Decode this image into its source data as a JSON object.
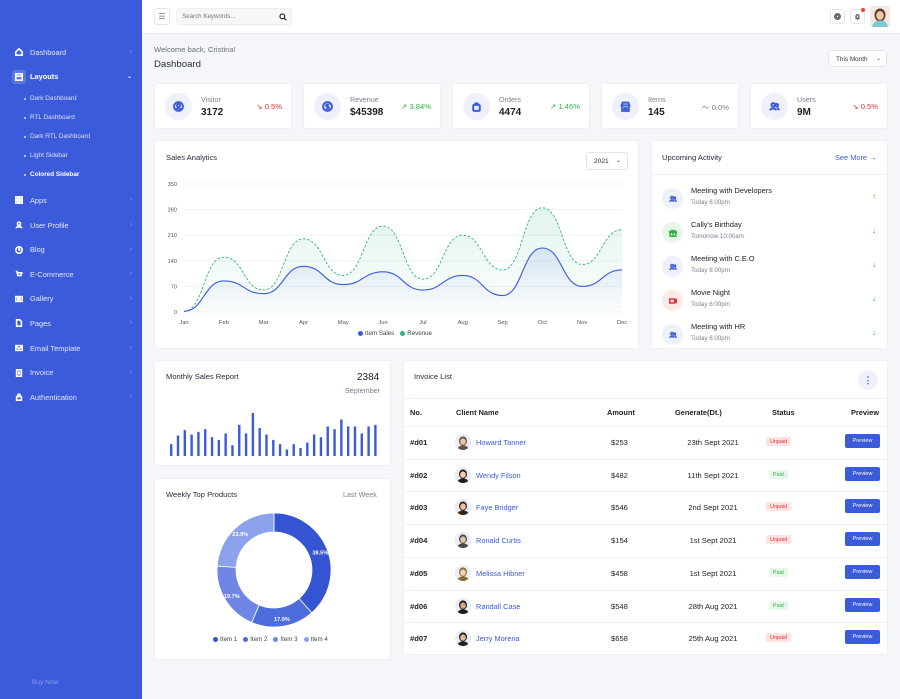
{
  "sidebar": {
    "items": [
      {
        "label": "Dashboard",
        "icon": "home-icon"
      },
      {
        "label": "Layouts",
        "icon": "layout-icon",
        "active": true,
        "sub": [
          {
            "label": "Dark Dashboard"
          },
          {
            "label": "RTL Dashboard"
          },
          {
            "label": "Dark RTL Dashboard"
          },
          {
            "label": "Light Sidebar"
          },
          {
            "label": "Colored Sidebar",
            "active": true
          }
        ]
      },
      {
        "label": "Apps",
        "icon": "apps-icon"
      },
      {
        "label": "User Profile",
        "icon": "user-icon"
      },
      {
        "label": "Blog",
        "icon": "blog-icon"
      },
      {
        "label": "E-Commerce",
        "icon": "cart-icon"
      },
      {
        "label": "Gallery",
        "icon": "gallery-icon"
      },
      {
        "label": "Pages",
        "icon": "pages-icon"
      },
      {
        "label": "Email Template",
        "icon": "mail-icon"
      },
      {
        "label": "Invoice",
        "icon": "invoice-icon"
      },
      {
        "label": "Authentication",
        "icon": "lock-icon"
      }
    ],
    "buy_now": "Buy Now",
    "color": "#3b5bdb"
  },
  "header": {
    "search_placeholder": "Search Keywords..."
  },
  "page": {
    "welcome": "Welcome back, Cristina!",
    "title": "Dashboard",
    "period": "This Month"
  },
  "stats": [
    {
      "label": "Visitor",
      "value": "3172",
      "change": "0.5%",
      "trend": "down",
      "icon": "visitor-icon"
    },
    {
      "label": "Revenue",
      "value": "$45398",
      "change": "3.84%",
      "trend": "up",
      "icon": "dollar-icon"
    },
    {
      "label": "Orders",
      "value": "4474",
      "change": "1.46%",
      "trend": "up",
      "icon": "bag-icon"
    },
    {
      "label": "Items",
      "value": "145",
      "change": "0.0%",
      "trend": "flat",
      "icon": "store-icon"
    },
    {
      "label": "Users",
      "value": "9M",
      "change": "0.5%",
      "trend": "down",
      "icon": "users-icon"
    }
  ],
  "sales_analytics": {
    "title": "Sales Analytics",
    "year": "2021"
  },
  "chart_data": [
    {
      "type": "area",
      "title": "Sales Analytics",
      "categories": [
        "Jan",
        "Feb",
        "Mar",
        "Apr",
        "May",
        "Jun",
        "Jul",
        "Aug",
        "Sep",
        "Oct",
        "Nov",
        "Dec"
      ],
      "yticks": [
        "350",
        "280",
        "210",
        "140",
        "70",
        "0"
      ],
      "ylim": [
        0,
        350
      ],
      "series": [
        {
          "name": "Item Sales",
          "values": [
            2,
            85,
            50,
            125,
            75,
            110,
            60,
            100,
            45,
            175,
            70,
            115
          ],
          "color": "#3b5bdb"
        },
        {
          "name": "Revenue",
          "values": [
            2,
            150,
            60,
            200,
            100,
            235,
            90,
            210,
            115,
            285,
            130,
            225
          ],
          "color": "#2fb380"
        }
      ]
    },
    {
      "type": "bar",
      "title": "Monthly Sales Report",
      "values": [
        22,
        38,
        48,
        40,
        45,
        50,
        35,
        30,
        42,
        20,
        58,
        42,
        80,
        52,
        40,
        30,
        22,
        12,
        22,
        15,
        25,
        40,
        35,
        55,
        50,
        68,
        55,
        55,
        42,
        55,
        58
      ],
      "color": "#3b5bdb"
    },
    {
      "type": "pie",
      "title": "Weekly Top Products",
      "categories": [
        "Item 1",
        "Item 2",
        "Item 3",
        "Item 4"
      ],
      "values": [
        38.5,
        17.9,
        19.7,
        23.9
      ],
      "colors": [
        "#3454d1",
        "#4d6ddc",
        "#7086e4",
        "#8da2ec"
      ]
    }
  ],
  "activity": {
    "title": "Upcoming Activity",
    "see_more": "See More",
    "items": [
      {
        "title": "Meeting with Developers",
        "time": "Today 6:00pm",
        "icon": "meeting-icon",
        "color": "#3b5bdb",
        "bg": "#eef1fb",
        "arrow": "↑",
        "arrow_color": "#f76707"
      },
      {
        "title": "Cally's Birthday",
        "time": "Tomorrow 10:00am",
        "icon": "gift-icon",
        "color": "#2fb344",
        "bg": "#e6f7ea",
        "arrow": "↓",
        "arrow_color": "#2fb344"
      },
      {
        "title": "Meeting with C.E.O",
        "time": "Today 6:00pm",
        "icon": "meeting-icon",
        "color": "#3b5bdb",
        "bg": "#eef1fb",
        "arrow": "↓",
        "arrow_color": "#2fb344"
      },
      {
        "title": "Movie Night",
        "time": "Today 6:00pm",
        "icon": "movie-icon",
        "color": "#e03131",
        "bg": "#ffe8e8",
        "arrow": "↓",
        "arrow_color": "#2fb344"
      },
      {
        "title": "Meeting with HR",
        "time": "Today 6:00pm",
        "icon": "meeting-icon",
        "color": "#3b5bdb",
        "bg": "#eef1fb",
        "arrow": "↓",
        "arrow_color": "#2fb344"
      }
    ]
  },
  "monthly_report": {
    "title": "Monthly Sales Report",
    "value": "2384",
    "sub": "September"
  },
  "top_products": {
    "title": "Weekly Top Products",
    "period": "Last Week"
  },
  "invoice": {
    "title": "Invoice List",
    "columns": {
      "no": "No.",
      "client": "Client Name",
      "amount": "Amount",
      "date": "Generate(Dt.)",
      "status": "Status",
      "preview": "Preview"
    },
    "rows": [
      {
        "no": "#d01",
        "client": "Howard Tanner",
        "amount": "$253",
        "date": "23th Sept 2021",
        "status": "Unpaid",
        "paid": false,
        "button": "Preview"
      },
      {
        "no": "#d02",
        "client": "Wendy Filson",
        "amount": "$482",
        "date": "11th Sept 2021",
        "status": "Paid",
        "paid": true,
        "button": "Preview"
      },
      {
        "no": "#d03",
        "client": "Faye Bridger",
        "amount": "$546",
        "date": "2nd Sept 2021",
        "status": "Unpaid",
        "paid": false,
        "button": "Preview"
      },
      {
        "no": "#d04",
        "client": "Ronald Curtis",
        "amount": "$154",
        "date": "1st Sept 2021",
        "status": "Unpaid",
        "paid": false,
        "button": "Preview"
      },
      {
        "no": "#d05",
        "client": "Melissa Hibner",
        "amount": "$458",
        "date": "1st Sept 2021",
        "status": "Paid",
        "paid": true,
        "button": "Preview"
      },
      {
        "no": "#d06",
        "client": "Randall Case",
        "amount": "$548",
        "date": "28th Aug 2021",
        "status": "Paid",
        "paid": true,
        "button": "Preview"
      },
      {
        "no": "#d07",
        "client": "Jerry Morena",
        "amount": "$658",
        "date": "25th Aug 2021",
        "status": "Unpaid",
        "paid": false,
        "button": "Preview"
      }
    ]
  }
}
